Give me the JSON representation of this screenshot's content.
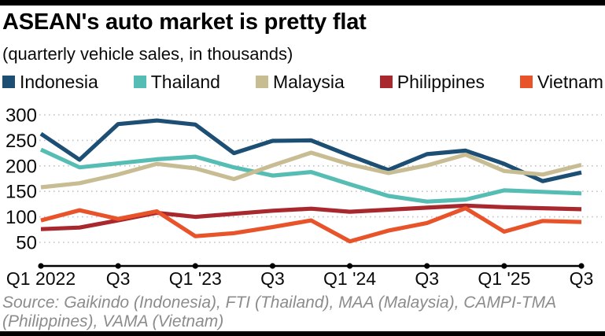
{
  "header": {
    "title": "ASEAN's auto market is pretty flat",
    "subtitle": "(quarterly vehicle sales, in thousands)"
  },
  "legend": [
    {
      "label": "Indonesia",
      "color": "#1d4e74"
    },
    {
      "label": "Thailand",
      "color": "#56bdb4"
    },
    {
      "label": "Malaysia",
      "color": "#c8bc93"
    },
    {
      "label": "Philippines",
      "color": "#a8282e"
    },
    {
      "label": "Vietnam",
      "color": "#e8532a"
    }
  ],
  "chart_data": {
    "type": "line",
    "title": "ASEAN's auto market is pretty flat",
    "subtitle": "(quarterly vehicle sales, in thousands)",
    "unit": "thousands of vehicles per quarter",
    "x_quarters": [
      "Q1 2022",
      "Q2 2022",
      "Q3 2022",
      "Q4 2022",
      "Q1 2023",
      "Q2 2023",
      "Q3 2023",
      "Q4 2023",
      "Q1 2024",
      "Q2 2024",
      "Q3 2024",
      "Q4 2024",
      "Q1 2025",
      "Q2 2025",
      "Q3 2025"
    ],
    "x_tick_labels": [
      "Q1 2022",
      "Q3",
      "Q1 '23",
      "Q3",
      "Q1 '24",
      "Q3",
      "Q1 '25",
      "Q3"
    ],
    "x_tick_indices": [
      0,
      2,
      4,
      6,
      8,
      10,
      12,
      14
    ],
    "y_ticks": [
      300,
      250,
      200,
      150,
      100,
      50
    ],
    "ylim": [
      30,
      310
    ],
    "grid": "dotted-horizontal",
    "legend_position": "top",
    "series": [
      {
        "name": "Indonesia",
        "color": "#1d4e74",
        "values": [
          263,
          212,
          282,
          289,
          281,
          225,
          249,
          250,
          220,
          192,
          223,
          230,
          204,
          170,
          187
        ]
      },
      {
        "name": "Thailand",
        "color": "#56bdb4",
        "values": [
          232,
          197,
          205,
          213,
          218,
          197,
          181,
          188,
          164,
          141,
          130,
          134,
          152,
          149,
          146
        ]
      },
      {
        "name": "Malaysia",
        "color": "#c8bc93",
        "values": [
          158,
          166,
          183,
          204,
          195,
          174,
          201,
          226,
          203,
          186,
          201,
          222,
          190,
          183,
          202
        ]
      },
      {
        "name": "Philippines",
        "color": "#a8282e",
        "values": [
          76,
          79,
          93,
          108,
          100,
          106,
          112,
          116,
          110,
          114,
          118,
          122,
          119,
          117,
          115
        ]
      },
      {
        "name": "Vietnam",
        "color": "#e8532a",
        "values": [
          93,
          113,
          96,
          111,
          62,
          68,
          80,
          93,
          52,
          73,
          88,
          117,
          71,
          92,
          90
        ]
      }
    ]
  },
  "source": {
    "line1": "Source: Gaikindo (Indonesia), FTI (Thailand), MAA (Malaysia), CAMPI-TMA",
    "line2": "(Philippines), VAMA (Vietnam)"
  }
}
